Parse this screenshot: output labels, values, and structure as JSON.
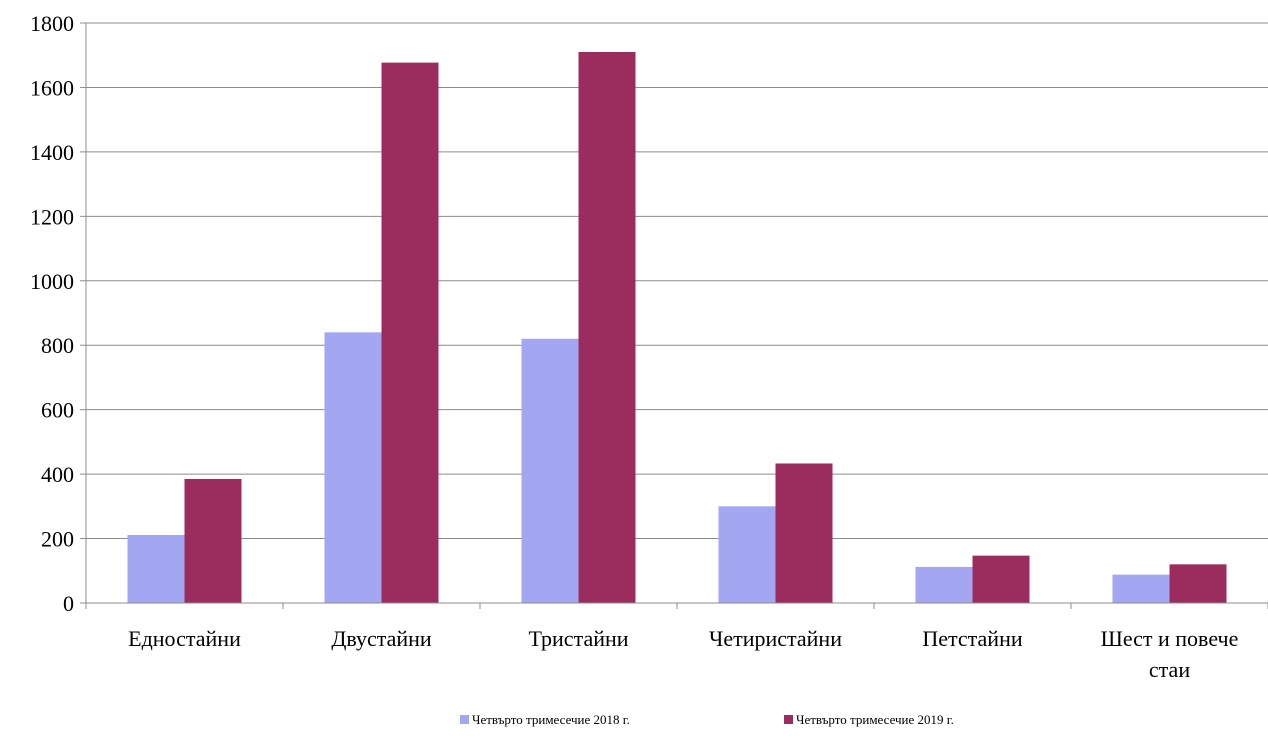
{
  "chart_data": {
    "type": "bar",
    "title": "",
    "xlabel": "",
    "ylabel": "",
    "categories": [
      [
        "Едностайни"
      ],
      [
        "Двустайни"
      ],
      [
        "Тристайни"
      ],
      [
        "Четиристайни"
      ],
      [
        "Петстайни"
      ],
      [
        "Шест и повече",
        "стаи"
      ]
    ],
    "series": [
      {
        "name": "Четвърто тримесечие 2018 г.",
        "color": "#a3a6f0",
        "values": [
          211,
          840,
          820,
          300,
          112,
          88
        ]
      },
      {
        "name": "Четвърто тримесечие 2019 г.",
        "color": "#9b2d5e",
        "values": [
          385,
          1677,
          1710,
          433,
          147,
          120
        ]
      }
    ],
    "ylim": [
      0,
      1800
    ],
    "yticks": [
      0,
      200,
      400,
      600,
      800,
      1000,
      1200,
      1400,
      1600,
      1800
    ],
    "grid": true,
    "legend_position": "bottom"
  }
}
